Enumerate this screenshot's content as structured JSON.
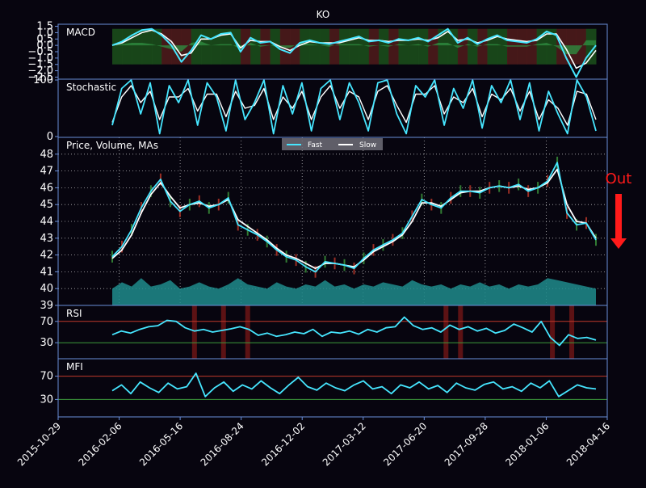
{
  "window": {
    "title": "KO"
  },
  "chart_data": [
    {
      "type": "line",
      "panel": "MACD",
      "title": "MACD",
      "y_ticks": [
        "1.5",
        "1.0",
        "0.5",
        "0.0",
        "−0.5",
        "−1.0",
        "−1.5",
        "−2.0",
        "−2.5"
      ],
      "ylim": [
        -2.6,
        1.6
      ],
      "background_shading": "green when MACD above signal, red when below",
      "series": [
        {
          "name": "",
          "role": "macd",
          "color": "#46e6ff",
          "values": [
            0,
            0.3,
            0.8,
            1.2,
            1.3,
            0.8,
            0,
            -1.3,
            -0.4,
            0.8,
            0.5,
            0.9,
            1.0,
            -0.5,
            0.6,
            0.2,
            0.3,
            -0.3,
            -0.6,
            0.2,
            0.4,
            0.2,
            0.1,
            0.3,
            0.5,
            0.7,
            0.3,
            0.4,
            0.2,
            0.5,
            0.4,
            0.6,
            0.3,
            0.8,
            1.3,
            0.2,
            0.6,
            0.1,
            0.5,
            0.8,
            0.4,
            0.3,
            0.2,
            0.5,
            1.1,
            0.8,
            -1.0,
            -2.5,
            -1.0,
            0.0
          ]
        },
        {
          "name": "",
          "role": "signal",
          "color": "#ffffff",
          "values": [
            0,
            0.2,
            0.6,
            1.0,
            1.2,
            0.9,
            0.3,
            -0.8,
            -0.6,
            0.5,
            0.5,
            0.8,
            0.9,
            -0.2,
            0.4,
            0.3,
            0.3,
            -0.1,
            -0.4,
            0.0,
            0.3,
            0.2,
            0.2,
            0.2,
            0.4,
            0.6,
            0.4,
            0.4,
            0.3,
            0.4,
            0.4,
            0.5,
            0.4,
            0.6,
            1.1,
            0.4,
            0.5,
            0.2,
            0.4,
            0.7,
            0.5,
            0.4,
            0.3,
            0.4,
            0.9,
            0.9,
            -0.3,
            -1.8,
            -1.4,
            -0.4
          ]
        }
      ]
    },
    {
      "type": "line",
      "panel": "Stochastic",
      "title": "Stochastic",
      "y_ticks": [
        "100",
        "0"
      ],
      "ylim": [
        0,
        100
      ],
      "series": [
        {
          "name": "",
          "role": "k",
          "color": "#46e6ff",
          "values": [
            20,
            85,
            100,
            40,
            95,
            5,
            90,
            60,
            100,
            20,
            95,
            70,
            10,
            100,
            30,
            60,
            100,
            5,
            90,
            40,
            95,
            10,
            85,
            100,
            30,
            95,
            60,
            10,
            95,
            100,
            40,
            5,
            90,
            70,
            100,
            20,
            85,
            50,
            100,
            15,
            90,
            60,
            100,
            30,
            95,
            10,
            80,
            40,
            5,
            100,
            70,
            10
          ]
        },
        {
          "name": "",
          "role": "d",
          "color": "#ffffff",
          "values": [
            25,
            70,
            90,
            60,
            80,
            30,
            70,
            70,
            85,
            45,
            75,
            75,
            35,
            80,
            50,
            55,
            85,
            30,
            70,
            50,
            80,
            30,
            70,
            90,
            50,
            80,
            70,
            30,
            80,
            90,
            55,
            25,
            75,
            75,
            90,
            40,
            70,
            60,
            85,
            35,
            75,
            65,
            85,
            45,
            80,
            30,
            65,
            50,
            20,
            80,
            75,
            30
          ]
        }
      ]
    },
    {
      "type": "line",
      "panel": "Price, Volume, MAs",
      "title": "Price, Volume, MAs",
      "y_ticks": [
        "39",
        "40",
        "41",
        "42",
        "43",
        "44",
        "45",
        "46",
        "47",
        "48"
      ],
      "ylim": [
        39,
        49
      ],
      "x_tick_labels": [
        "2015-10-29",
        "2016-02-06",
        "2016-05-16",
        "2016-08-24",
        "2016-12-02",
        "2017-03-12",
        "2017-06-20",
        "2017-09-28",
        "2018-01-06",
        "2018-04-16"
      ],
      "x_range": [
        "2015-10-29",
        "2018-04-16"
      ],
      "grid": true,
      "legend": {
        "placement": "top-center",
        "entries": [
          {
            "label": "Fast",
            "color": "#46e6ff"
          },
          {
            "label": "Slow",
            "color": "#ffffff"
          }
        ]
      },
      "annotation": {
        "text": "Out",
        "color": "#ff1a1a"
      },
      "series": [
        {
          "name": "Fast",
          "color": "#46e6ff",
          "values": [
            41.9,
            42.5,
            43.5,
            44.8,
            45.8,
            46.5,
            45.2,
            44.6,
            45.0,
            45.2,
            44.8,
            45.0,
            45.4,
            43.8,
            43.5,
            43.2,
            42.8,
            42.3,
            41.9,
            41.7,
            41.3,
            41.0,
            41.6,
            41.5,
            41.4,
            41.2,
            41.8,
            42.3,
            42.6,
            42.9,
            43.3,
            44.3,
            45.3,
            45.0,
            44.8,
            45.4,
            45.8,
            45.8,
            45.7,
            46.0,
            46.1,
            46.0,
            46.2,
            45.8,
            46.0,
            46.4,
            47.5,
            44.5,
            43.8,
            43.9,
            42.9
          ]
        },
        {
          "name": "Slow",
          "color": "#ffffff",
          "values": [
            41.8,
            42.3,
            43.2,
            44.5,
            45.6,
            46.3,
            45.5,
            44.8,
            45.0,
            45.1,
            44.9,
            45.0,
            45.3,
            44.1,
            43.7,
            43.3,
            42.9,
            42.4,
            42.0,
            41.8,
            41.5,
            41.2,
            41.5,
            41.5,
            41.4,
            41.3,
            41.7,
            42.2,
            42.5,
            42.8,
            43.2,
            44.0,
            45.1,
            45.1,
            44.9,
            45.3,
            45.7,
            45.8,
            45.8,
            46.0,
            46.1,
            46.0,
            46.1,
            45.9,
            46.0,
            46.3,
            47.1,
            45.0,
            44.0,
            43.9,
            43.0
          ]
        }
      ],
      "volume": {
        "color": "#1e8c8c",
        "values": [
          0.8,
          1.1,
          0.9,
          1.3,
          0.9,
          1.0,
          1.2,
          0.8,
          0.9,
          1.1,
          0.9,
          0.8,
          1.0,
          1.3,
          1.0,
          0.9,
          0.8,
          1.1,
          0.9,
          0.8,
          1.0,
          0.9,
          1.2,
          0.9,
          1.0,
          0.8,
          1.0,
          0.9,
          1.1,
          1.0,
          0.9,
          1.2,
          1.0,
          0.9,
          1.0,
          0.8,
          1.0,
          0.9,
          1.1,
          0.9,
          1.0,
          0.8,
          1.0,
          0.9,
          1.0,
          1.3,
          1.2,
          1.1,
          1.0,
          0.9,
          0.8
        ]
      }
    },
    {
      "type": "line",
      "panel": "RSI",
      "title": "RSI",
      "y_ticks": [
        "70",
        "30"
      ],
      "ylim": [
        0,
        100
      ],
      "overbought": 70,
      "oversold": 30,
      "series": [
        {
          "name": "",
          "color": "#46e6ff",
          "values": [
            45,
            52,
            48,
            55,
            60,
            62,
            72,
            70,
            58,
            52,
            55,
            50,
            53,
            56,
            60,
            55,
            44,
            48,
            42,
            45,
            50,
            47,
            55,
            42,
            50,
            48,
            52,
            46,
            55,
            50,
            58,
            60,
            78,
            62,
            55,
            58,
            50,
            63,
            55,
            60,
            52,
            57,
            48,
            53,
            65,
            58,
            50,
            70,
            40,
            25,
            45,
            38,
            40,
            35
          ]
        }
      ],
      "highlights": [
        0.17,
        0.23,
        0.28,
        0.69,
        0.72,
        0.91,
        0.95
      ]
    },
    {
      "type": "line",
      "panel": "MFI",
      "title": "MFI",
      "y_ticks": [
        "70",
        "30"
      ],
      "ylim": [
        0,
        100
      ],
      "overbought": 70,
      "oversold": 30,
      "series": [
        {
          "name": "",
          "color": "#46e6ff",
          "values": [
            45,
            55,
            40,
            60,
            50,
            42,
            58,
            48,
            52,
            75,
            35,
            50,
            60,
            44,
            55,
            48,
            62,
            50,
            40,
            55,
            68,
            52,
            46,
            58,
            50,
            45,
            55,
            62,
            48,
            52,
            40,
            55,
            50,
            60,
            48,
            54,
            42,
            58,
            50,
            46,
            56,
            60,
            48,
            52,
            44,
            58,
            50,
            62,
            35,
            45,
            55,
            50,
            48
          ]
        }
      ]
    }
  ]
}
